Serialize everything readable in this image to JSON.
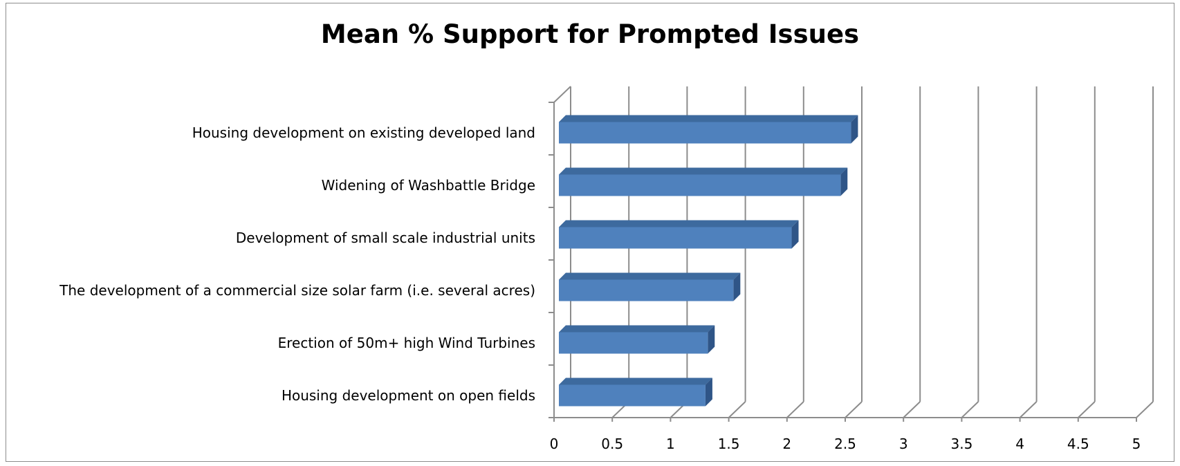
{
  "chart_data": {
    "type": "bar",
    "orientation": "horizontal",
    "style": "3d",
    "title": "Mean % Support for Prompted Issues",
    "categories": [
      "Housing development on existing developed land",
      "Widening of Washbattle Bridge",
      "Development of small scale industrial units",
      "The development of a commercial size solar farm (i.e. several acres)",
      "Erection of 50m+ high Wind Turbines",
      "Housing development on open fields"
    ],
    "values": [
      2.55,
      2.46,
      2.04,
      1.54,
      1.32,
      1.3
    ],
    "xlim": [
      0,
      5
    ],
    "xticks": [
      "0",
      "0.5",
      "1",
      "1.5",
      "2",
      "2.5",
      "3",
      "3.5",
      "4",
      "4.5",
      "5"
    ],
    "grid": true,
    "legend": "none",
    "colors": {
      "bar_front": "#4f81bd",
      "bar_top": "#3d6a9e",
      "bar_side": "#2f5587",
      "grid": "#8c8c8c"
    }
  }
}
